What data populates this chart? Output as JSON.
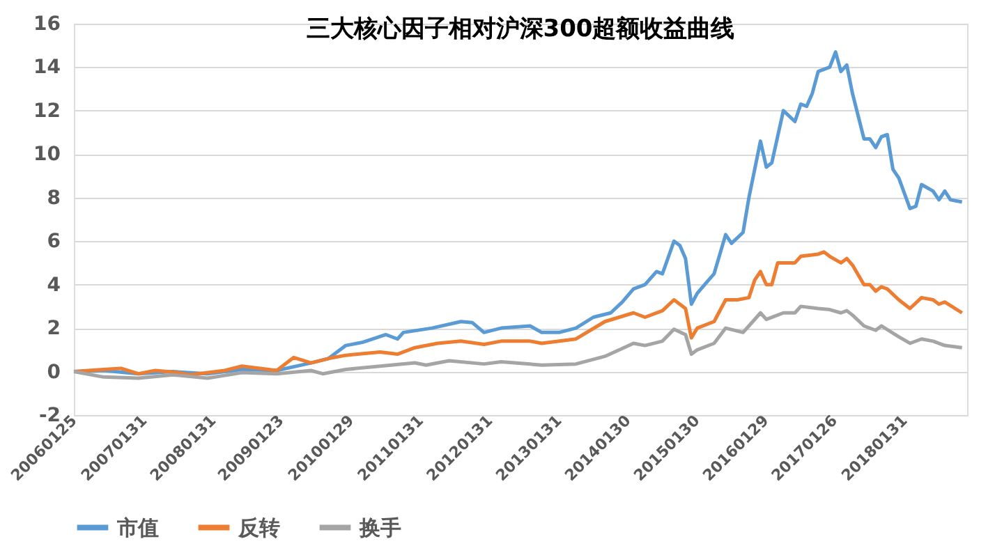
{
  "chart_data": {
    "type": "line",
    "title": "三大核心因子相对沪深300超额收益曲线",
    "xlim": [
      "2006-01-25",
      "2018-12-28"
    ],
    "xticks": [
      {
        "value": "2006-01-25",
        "label": "20060125"
      },
      {
        "value": "2007-01-31",
        "label": "20070131"
      },
      {
        "value": "2008-01-31",
        "label": "20080131"
      },
      {
        "value": "2009-01-23",
        "label": "20090123"
      },
      {
        "value": "2010-01-29",
        "label": "20100129"
      },
      {
        "value": "2011-01-31",
        "label": "20110131"
      },
      {
        "value": "2012-01-31",
        "label": "20120131"
      },
      {
        "value": "2013-01-31",
        "label": "20130131"
      },
      {
        "value": "2014-01-30",
        "label": "20140130"
      },
      {
        "value": "2015-01-30",
        "label": "20150130"
      },
      {
        "value": "2016-01-29",
        "label": "20160129"
      },
      {
        "value": "2017-01-26",
        "label": "20170126"
      },
      {
        "value": "2018-01-31",
        "label": "20180131"
      }
    ],
    "ylim": [
      -2,
      16
    ],
    "yticks": [
      -2,
      0,
      2,
      4,
      6,
      8,
      10,
      12,
      14,
      16
    ],
    "grid": "y",
    "legend": "bottom",
    "line_style": "solid",
    "series": [
      {
        "name": "市值",
        "color": "#5b9bd5",
        "x": [
          "2006-01-25",
          "2006-07",
          "2007-01",
          "2007-07",
          "2008-01",
          "2008-07",
          "2009-01",
          "2009-07",
          "2009-10",
          "2010-01",
          "2010-04",
          "2010-08",
          "2010-10",
          "2010-11",
          "2011-04",
          "2011-09",
          "2011-11",
          "2012-01",
          "2012-04",
          "2012-09",
          "2012-11",
          "2013-02",
          "2013-05",
          "2013-08",
          "2013-11",
          "2014-01",
          "2014-03",
          "2014-05",
          "2014-07",
          "2014-08",
          "2014-10",
          "2014-11",
          "2014-12",
          "2015-01",
          "2015-02",
          "2015-04",
          "2015-05",
          "2015-07",
          "2015-08",
          "2015-10",
          "2015-11",
          "2016-01",
          "2016-02",
          "2016-03",
          "2016-05",
          "2016-07",
          "2016-08",
          "2016-09",
          "2016-10",
          "2016-11",
          "2017-01",
          "2017-02",
          "2017-03",
          "2017-04",
          "2017-05",
          "2017-07",
          "2017-08",
          "2017-09",
          "2017-10",
          "2017-11",
          "2017-12",
          "2018-01",
          "2018-03",
          "2018-04",
          "2018-05",
          "2018-07",
          "2018-08",
          "2018-09",
          "2018-10",
          "2018-12"
        ],
        "values": [
          0,
          0.05,
          -0.1,
          0.0,
          -0.1,
          0.1,
          0.05,
          0.4,
          0.6,
          1.2,
          1.35,
          1.7,
          1.5,
          1.8,
          2.0,
          2.3,
          2.25,
          1.8,
          2.0,
          2.1,
          1.8,
          1.8,
          2.0,
          2.5,
          2.7,
          3.2,
          3.8,
          4.0,
          4.6,
          4.5,
          6.0,
          5.8,
          5.2,
          3.1,
          3.6,
          4.2,
          4.5,
          6.3,
          5.9,
          6.4,
          8.0,
          10.6,
          9.4,
          9.6,
          12.0,
          11.5,
          12.3,
          12.2,
          12.8,
          13.8,
          14.0,
          14.7,
          13.8,
          14.1,
          12.8,
          10.7,
          10.7,
          10.3,
          10.8,
          10.9,
          9.3,
          8.9,
          7.5,
          7.6,
          8.6,
          8.3,
          7.9,
          8.3,
          7.9,
          7.8
        ]
      },
      {
        "name": "反转",
        "color": "#ed7d31",
        "x": [
          "2006-01-25",
          "2006-07",
          "2006-10",
          "2007-01",
          "2007-04",
          "2007-08",
          "2007-10",
          "2008-04",
          "2008-07",
          "2009-01",
          "2009-04",
          "2009-07",
          "2009-10",
          "2010-01",
          "2010-07",
          "2010-10",
          "2011-01",
          "2011-05",
          "2011-09",
          "2012-01",
          "2012-04",
          "2012-09",
          "2012-11",
          "2013-05",
          "2013-10",
          "2014-03",
          "2014-05",
          "2014-08",
          "2014-10",
          "2014-12",
          "2015-01",
          "2015-02",
          "2015-05",
          "2015-07",
          "2015-09",
          "2015-11",
          "2015-12",
          "2016-01",
          "2016-02",
          "2016-03",
          "2016-04",
          "2016-07",
          "2016-08",
          "2016-11",
          "2016-12",
          "2017-01",
          "2017-03",
          "2017-04",
          "2017-05",
          "2017-07",
          "2017-08",
          "2017-09",
          "2017-10",
          "2017-11",
          "2018-01",
          "2018-03",
          "2018-05",
          "2018-07",
          "2018-08",
          "2018-09",
          "2018-12"
        ],
        "values": [
          0,
          0.1,
          0.15,
          -0.1,
          0.05,
          -0.05,
          -0.15,
          0.05,
          0.25,
          0.05,
          0.65,
          0.4,
          0.6,
          0.75,
          0.9,
          0.8,
          1.1,
          1.3,
          1.4,
          1.25,
          1.4,
          1.4,
          1.3,
          1.5,
          2.3,
          2.7,
          2.5,
          2.8,
          3.3,
          2.9,
          1.55,
          2.0,
          2.3,
          3.3,
          3.3,
          3.4,
          4.2,
          4.6,
          4.0,
          4.0,
          5.0,
          5.0,
          5.3,
          5.4,
          5.5,
          5.3,
          5.0,
          5.2,
          4.9,
          4.0,
          4.0,
          3.7,
          3.9,
          3.8,
          3.3,
          2.9,
          3.4,
          3.3,
          3.1,
          3.2,
          2.7
        ]
      },
      {
        "name": "换手",
        "color": "#a5a5a5",
        "x": [
          "2006-01-25",
          "2006-07",
          "2007-01",
          "2007-07",
          "2008-01",
          "2008-07",
          "2009-01",
          "2009-07",
          "2009-09",
          "2010-01",
          "2010-07",
          "2011-01",
          "2011-03",
          "2011-07",
          "2012-01",
          "2012-04",
          "2012-11",
          "2013-05",
          "2013-10",
          "2014-03",
          "2014-05",
          "2014-08",
          "2014-10",
          "2014-12",
          "2015-01",
          "2015-02",
          "2015-05",
          "2015-07",
          "2015-10",
          "2015-11",
          "2016-01",
          "2016-02",
          "2016-05",
          "2016-07",
          "2016-08",
          "2016-11",
          "2017-01",
          "2017-03",
          "2017-04",
          "2017-05",
          "2017-07",
          "2017-09",
          "2017-10",
          "2018-01",
          "2018-03",
          "2018-05",
          "2018-07",
          "2018-09",
          "2018-12"
        ],
        "values": [
          0,
          -0.25,
          -0.3,
          -0.15,
          -0.3,
          -0.05,
          -0.1,
          0.05,
          -0.1,
          0.1,
          0.25,
          0.4,
          0.3,
          0.5,
          0.35,
          0.45,
          0.3,
          0.35,
          0.7,
          1.3,
          1.2,
          1.4,
          1.95,
          1.7,
          0.8,
          1.0,
          1.3,
          2.0,
          1.8,
          2.1,
          2.7,
          2.4,
          2.7,
          2.7,
          3.0,
          2.9,
          2.85,
          2.7,
          2.8,
          2.6,
          2.1,
          1.9,
          2.1,
          1.6,
          1.3,
          1.5,
          1.4,
          1.2,
          1.1
        ]
      }
    ]
  }
}
